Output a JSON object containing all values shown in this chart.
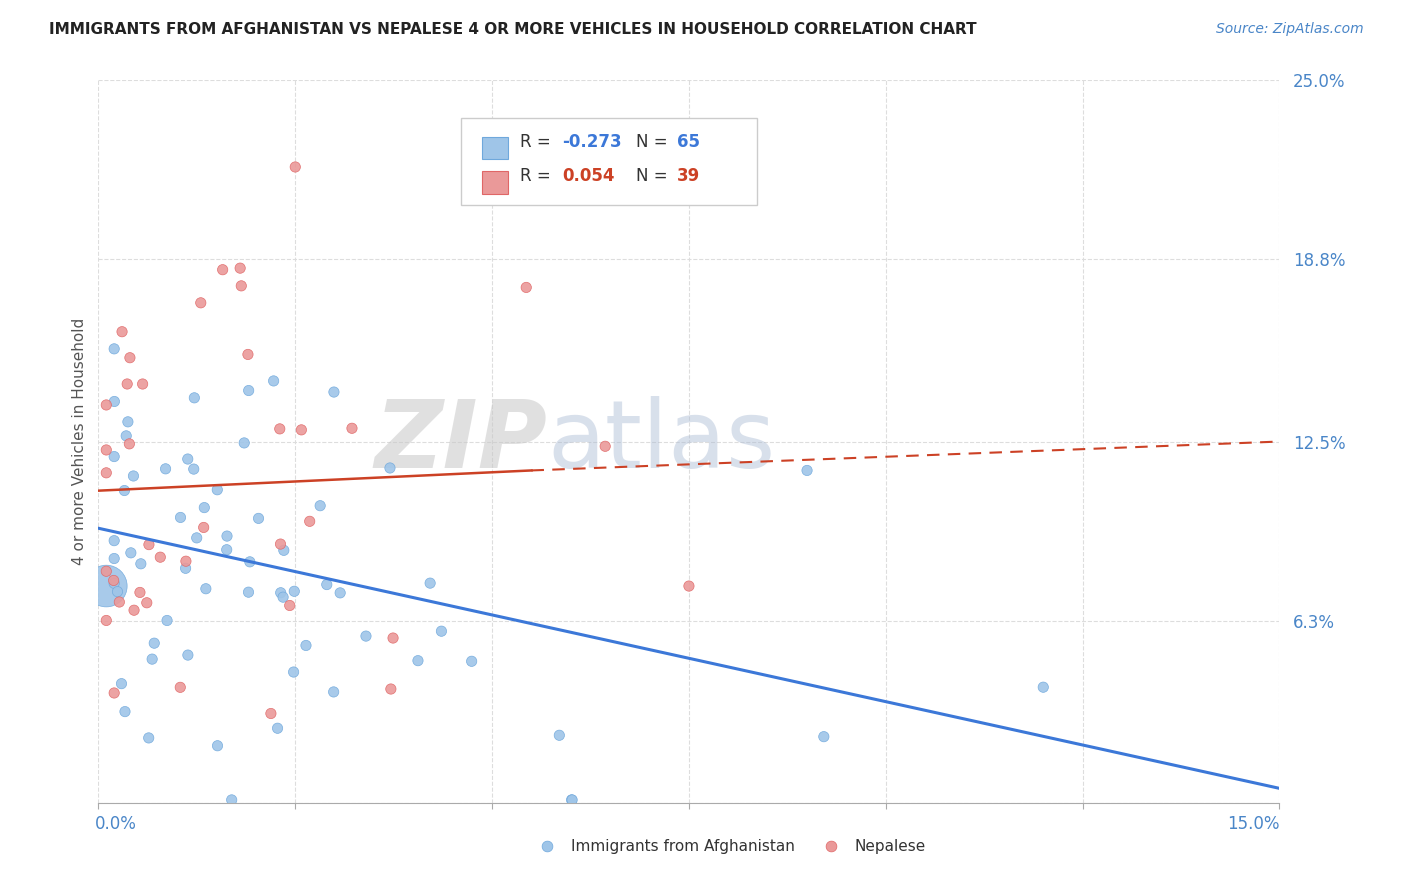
{
  "title": "IMMIGRANTS FROM AFGHANISTAN VS NEPALESE 4 OR MORE VEHICLES IN HOUSEHOLD CORRELATION CHART",
  "source": "Source: ZipAtlas.com",
  "ylabel": "4 or more Vehicles in Household",
  "y_ticks": [
    0.0,
    0.063,
    0.125,
    0.188,
    0.25
  ],
  "y_tick_labels": [
    "",
    "6.3%",
    "12.5%",
    "18.8%",
    "25.0%"
  ],
  "x_lim": [
    0.0,
    0.15
  ],
  "y_lim": [
    0.0,
    0.25
  ],
  "color_blue": "#9fc5e8",
  "color_pink": "#ea9999",
  "color_blue_line": "#3c78d8",
  "color_pink_line": "#cc4125",
  "color_axis_label": "#4a86c8",
  "color_grid": "#dddddd",
  "watermark_zip": "ZIP",
  "watermark_atlas": "atlas",
  "af_trend_x0": 0.0,
  "af_trend_y0": 0.095,
  "af_trend_x1": 0.15,
  "af_trend_y1": 0.005,
  "np_trend_solid_x0": 0.0,
  "np_trend_solid_y0": 0.108,
  "np_trend_solid_x1": 0.055,
  "np_trend_solid_y1": 0.115,
  "np_trend_dash_x0": 0.055,
  "np_trend_dash_y0": 0.115,
  "np_trend_dash_x1": 0.15,
  "np_trend_dash_y1": 0.125
}
